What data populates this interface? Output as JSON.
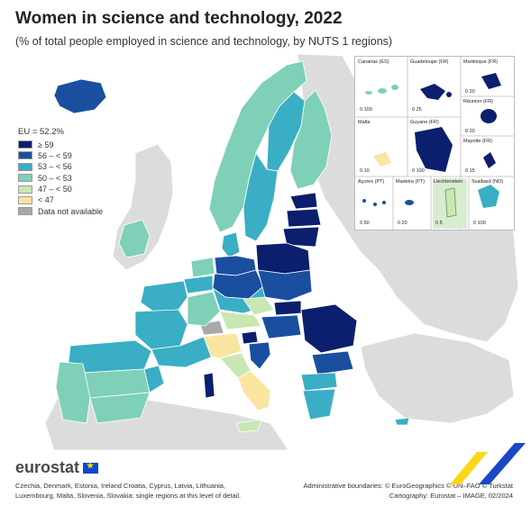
{
  "title": "Women in science and technology, 2022",
  "subtitle": "(% of total people employed in science and technology, by NUTS 1 regions)",
  "legend": {
    "eu_value": "EU = 52.2%",
    "items": [
      {
        "label": "≥ 59",
        "color": "#0b1f6e"
      },
      {
        "label": "56 – < 59",
        "color": "#1a4fa0"
      },
      {
        "label": "53 – < 56",
        "color": "#3aaec4"
      },
      {
        "label": "50 – < 53",
        "color": "#7fd0b8"
      },
      {
        "label": "47 – < 50",
        "color": "#c9e7b3"
      },
      {
        "label": "< 47",
        "color": "#fae5a0"
      },
      {
        "label": "Data not available",
        "color": "#a9a9a9"
      }
    ]
  },
  "insets": {
    "canarias": {
      "name": "Canarias (ES)",
      "scale": "0  100"
    },
    "guadeloupe": {
      "name": "Guadeloupe (FR)",
      "scale": "0  25"
    },
    "martinique": {
      "name": "Martinique (FR)",
      "scale": "0  20"
    },
    "reunion": {
      "name": "Réunion (FR)",
      "scale": "0  20"
    },
    "malta": {
      "name": "Malta",
      "scale": "0  10"
    },
    "guyane": {
      "name": "Guyane (FR)",
      "scale": "0  100"
    },
    "mayotte": {
      "name": "Mayotte (FR)",
      "scale": "0  15"
    },
    "acores": {
      "name": "Açores (PT)",
      "scale": "0  50"
    },
    "madeira": {
      "name": "Madeira (PT)",
      "scale": "0  20"
    },
    "liechtenstein": {
      "name": "Liechtenstein",
      "scale": "0  5"
    },
    "svalbard": {
      "name": "Svalbard (NO)",
      "scale": "0  100"
    }
  },
  "logo": "eurostat",
  "footer_left": "Czechia, Denmark, Estonia, Ireland Croatia, Cyprus, Latvia, Lithuania, Luxembourg, Malta, Slovenia, Slovakia: single regions at this level of detail.",
  "footer_right_1": "Administrative boundaries: © EuroGeographics © UN–FAO © Turkstat",
  "footer_right_2": "Cartography: Eurostat – IMAGE, 02/2024",
  "colors": {
    "sea": "#ffffff",
    "non_eu": "#dcdcdc",
    "border": "#ffffff",
    "accent_yellow": "#ffd617",
    "accent_blue": "#1a47c6"
  }
}
